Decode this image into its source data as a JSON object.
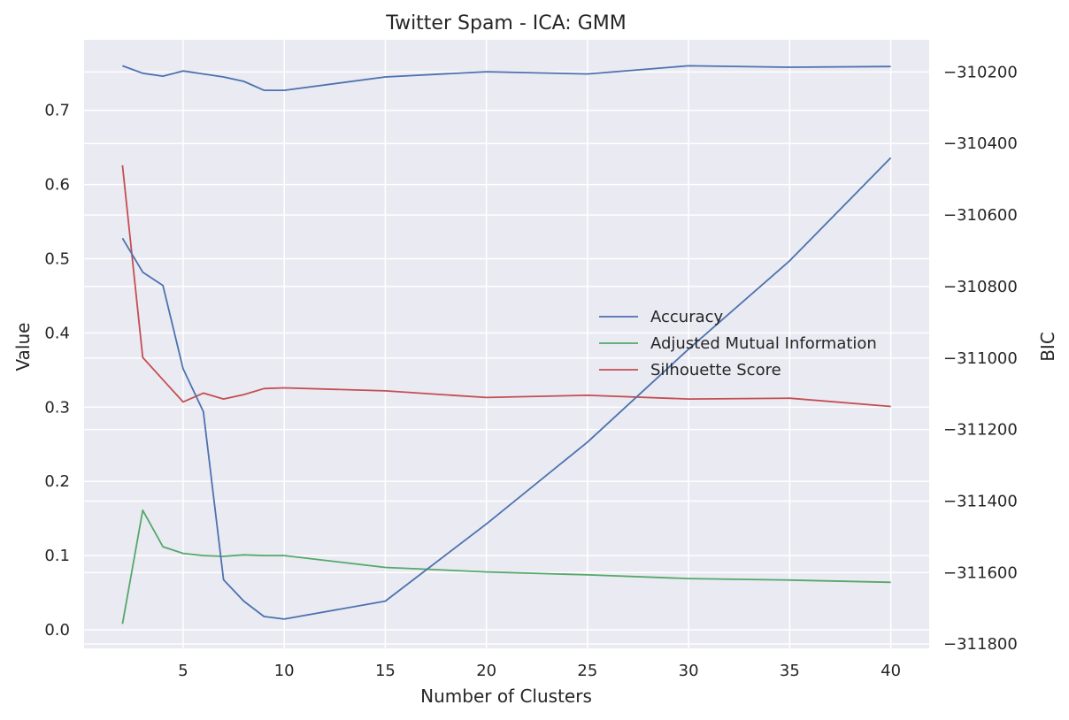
{
  "chart_data": {
    "type": "line",
    "title": "Twitter Spam - ICA: GMM",
    "xlabel": "Number of Clusters",
    "ylabel": "Value",
    "y2label": "BIC",
    "x": [
      2,
      3,
      4,
      5,
      6,
      7,
      8,
      9,
      10,
      15,
      20,
      25,
      30,
      35,
      40
    ],
    "xlim": [
      0.1,
      41.9
    ],
    "xticks": [
      5,
      10,
      15,
      20,
      25,
      30,
      35,
      40
    ],
    "ylim": [
      -0.025,
      0.795
    ],
    "yticks": [
      0.0,
      0.1,
      0.2,
      0.3,
      0.4,
      0.5,
      0.6,
      0.7
    ],
    "y2lim": [
      -311812,
      -310110
    ],
    "y2ticks": [
      -311800,
      -311600,
      -311400,
      -311200,
      -311000,
      -310800,
      -310600,
      -310400,
      -310200
    ],
    "grid": true,
    "legend_position": "center-right",
    "series": [
      {
        "name": "Accuracy",
        "axis": "left",
        "color": "#4c72b0",
        "values": [
          0.76,
          0.75,
          0.746,
          0.753,
          0.749,
          0.745,
          0.739,
          0.727,
          0.727,
          0.745,
          0.752,
          0.749,
          0.76,
          0.758,
          0.759
        ]
      },
      {
        "name": "Adjusted Mutual Information",
        "axis": "left",
        "color": "#55a868",
        "values": [
          0.008,
          0.161,
          0.112,
          0.103,
          0.1,
          0.099,
          0.101,
          0.1,
          0.1,
          0.084,
          0.078,
          0.074,
          0.069,
          0.067,
          0.064
        ]
      },
      {
        "name": "Silhouette Score",
        "axis": "left",
        "color": "#c44e52",
        "values": [
          0.626,
          0.367,
          0.337,
          0.307,
          0.319,
          0.311,
          0.317,
          0.325,
          0.326,
          0.322,
          0.313,
          0.316,
          0.311,
          0.312,
          0.301
        ]
      },
      {
        "name": "",
        "axis": "right",
        "color": "#4c72b0",
        "values": [
          -310665,
          -310760,
          -310797,
          -311030,
          -311150,
          -311620,
          -311680,
          -311723,
          -311730,
          -311680,
          -311464,
          -311235,
          -310975,
          -310728,
          -310440
        ]
      }
    ]
  }
}
